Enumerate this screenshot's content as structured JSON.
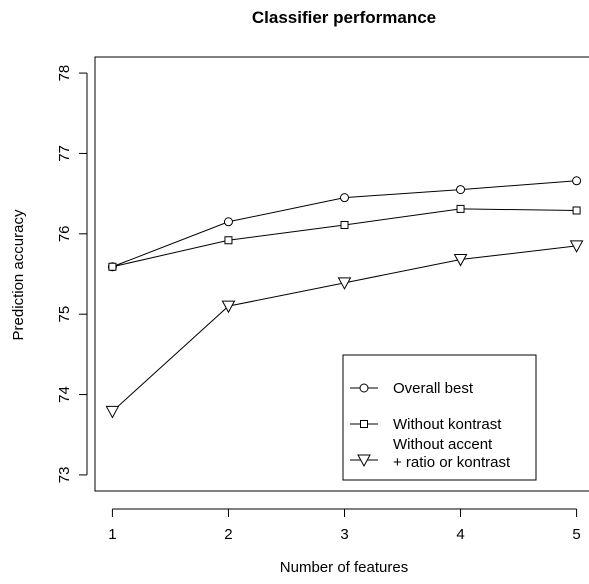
{
  "chart_data": {
    "type": "line",
    "title": "Classifier performance",
    "xlabel": "Number of features",
    "ylabel": "Prediction accuracy",
    "x": [
      1,
      2,
      3,
      4,
      5
    ],
    "xlim": [
      0.85,
      5.15
    ],
    "ylim": [
      72.8,
      78.2
    ],
    "x_ticks": [
      "1",
      "2",
      "3",
      "4",
      "5"
    ],
    "y_ticks": [
      "73",
      "74",
      "75",
      "76",
      "77",
      "78"
    ],
    "grid": false,
    "legend_position": "bottom-right",
    "series": [
      {
        "name": "Overall best",
        "marker": "circle",
        "values": [
          75.59,
          76.15,
          76.45,
          76.55,
          76.66
        ]
      },
      {
        "name": "Without kontrast",
        "marker": "square",
        "values": [
          75.59,
          75.92,
          76.11,
          76.31,
          76.29
        ]
      },
      {
        "name": "Without accent\n+ ratio or kontrast",
        "marker": "triangle-down",
        "values": [
          73.79,
          75.1,
          75.39,
          75.68,
          75.85
        ]
      }
    ]
  }
}
